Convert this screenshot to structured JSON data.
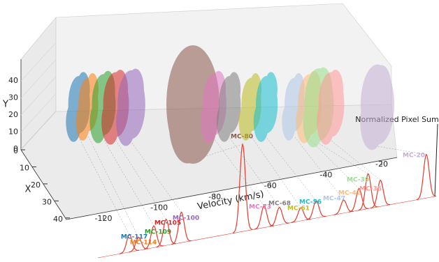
{
  "chart_data": {
    "type": "scatter3d",
    "xlabel": "Velocity (km/s)",
    "ylabel": "X",
    "zlabel": "Y",
    "spectrum_label": "Normalized Pixel Sum",
    "xlim": [
      -125,
      -15
    ],
    "xticks": [
      -120,
      -100,
      -80,
      -60,
      -40,
      -20
    ],
    "ylim": [
      0,
      45
    ],
    "yticks": [
      0,
      10,
      20,
      30,
      40
    ],
    "zlim": [
      0,
      45
    ],
    "zticks": [
      0,
      10,
      20,
      30,
      40
    ],
    "spectrum_color": "#e8392b",
    "clusters": [
      {
        "name": "MC-117",
        "velocity": -117,
        "peak": 0.2,
        "color": "#1f77b4"
      },
      {
        "name": "MC-114",
        "velocity": -114,
        "peak": 0.15,
        "color": "#ff7f0e"
      },
      {
        "name": "MC-109",
        "velocity": -109,
        "peak": 0.25,
        "color": "#2ca02c"
      },
      {
        "name": "MC-105",
        "velocity": -105,
        "peak": 0.3,
        "color": "#d62728"
      },
      {
        "name": "MC-100",
        "velocity": -100,
        "peak": 0.35,
        "color": "#9467bd"
      },
      {
        "name": "MC-80",
        "velocity": -80,
        "peak": 1.0,
        "color": "#8c564b"
      },
      {
        "name": "MC-73",
        "velocity": -73,
        "peak": 0.25,
        "color": "#e377c2"
      },
      {
        "name": "MC-68",
        "velocity": -68,
        "peak": 0.2,
        "color": "#7f7f7f"
      },
      {
        "name": "MC-61",
        "velocity": -61,
        "peak": 0.15,
        "color": "#bcbd22"
      },
      {
        "name": "MC-56",
        "velocity": -56,
        "peak": 0.2,
        "color": "#17becf"
      },
      {
        "name": "MC-47",
        "velocity": -47,
        "peak": 0.15,
        "color": "#aec7e8"
      },
      {
        "name": "MC-42",
        "velocity": -42,
        "peak": 0.25,
        "color": "#ffbb78"
      },
      {
        "name": "MC-39",
        "velocity": -39,
        "peak": 0.4,
        "color": "#98df8a"
      },
      {
        "name": "MC-35",
        "velocity": -35,
        "peak": 0.3,
        "color": "#ff9896"
      },
      {
        "name": "MC-20",
        "velocity": -20,
        "peak": 0.5,
        "color": "#c5b0d5"
      }
    ]
  }
}
